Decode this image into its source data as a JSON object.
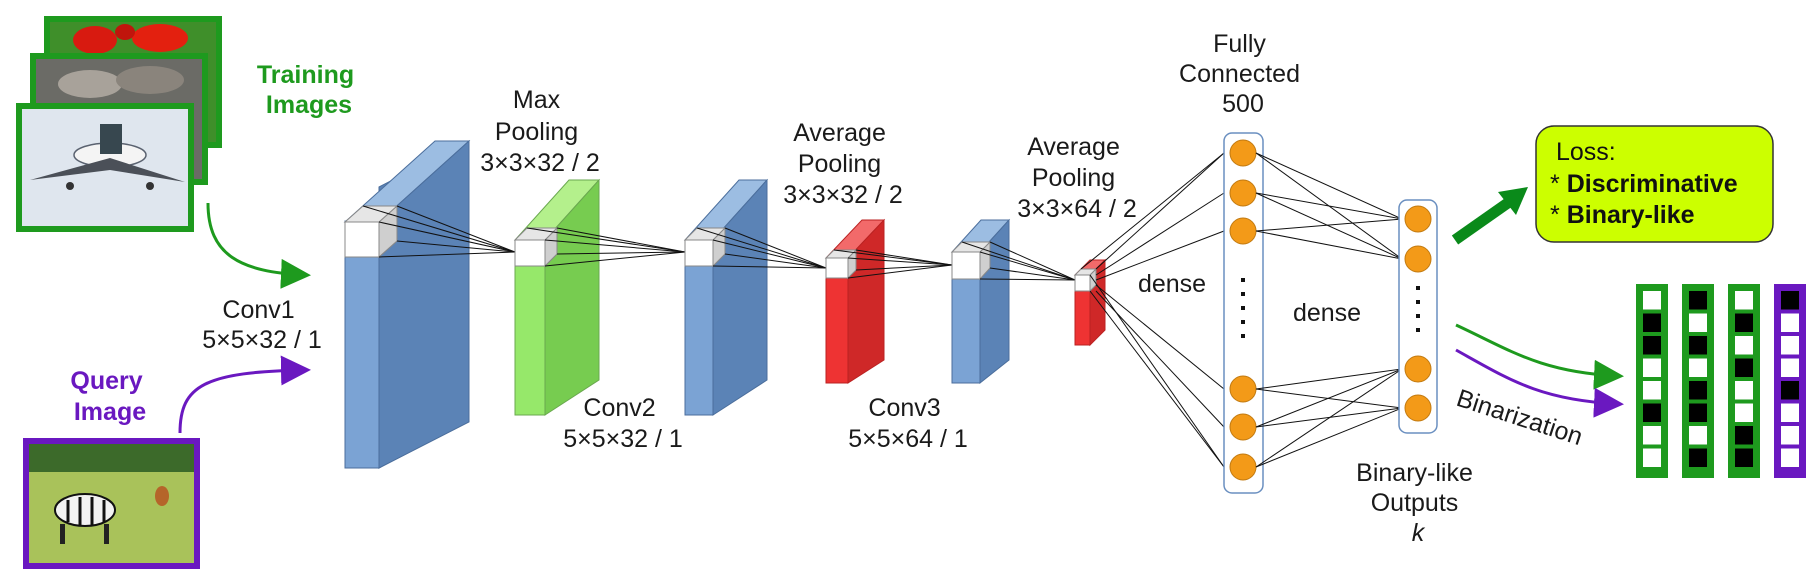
{
  "inputs": {
    "training_label": [
      "Training",
      "Images"
    ],
    "query_label": [
      "Query",
      "Image"
    ]
  },
  "layers": {
    "conv1": [
      "Conv1",
      "5×5×32 / 1"
    ],
    "maxpool": [
      "Max",
      "Pooling",
      "3×3×32 / 2"
    ],
    "conv2": [
      "Conv2",
      "5×5×32 / 1"
    ],
    "avgpool1": [
      "Average",
      "Pooling",
      "3×3×32 / 2"
    ],
    "conv3": [
      "Conv3",
      "5×5×64 / 1"
    ],
    "avgpool2": [
      "Average",
      "Pooling",
      "3×3×64 / 2"
    ],
    "fc": [
      "Fully",
      "Connected",
      "500"
    ],
    "dense1": "dense",
    "dense2": "dense",
    "outputs": [
      "Binary-like",
      "Outputs",
      "k"
    ]
  },
  "loss": {
    "title": "Loss:",
    "bullet1_prefix": "* ",
    "bullet1": "Discriminative",
    "bullet2_prefix": "* ",
    "bullet2": "Binary-like"
  },
  "binarization_label": "Binarization",
  "binary_codes": [
    {
      "frame": "green",
      "bits": [
        0,
        1,
        1,
        0,
        0,
        1,
        0,
        0
      ]
    },
    {
      "frame": "green",
      "bits": [
        1,
        0,
        1,
        0,
        1,
        1,
        0,
        1
      ]
    },
    {
      "frame": "green",
      "bits": [
        0,
        1,
        0,
        1,
        0,
        0,
        1,
        1
      ]
    },
    {
      "frame": "purple",
      "bits": [
        1,
        0,
        0,
        0,
        1,
        0,
        0,
        0
      ]
    }
  ],
  "colors": {
    "conv": "#7ba3d4",
    "maxpool": "#8fe060",
    "avgpool": "#ee3333",
    "green": "#1e9a1e",
    "purple": "#6a18c0",
    "neuron": "#f39a18",
    "loss_bg": "#ccff00"
  }
}
